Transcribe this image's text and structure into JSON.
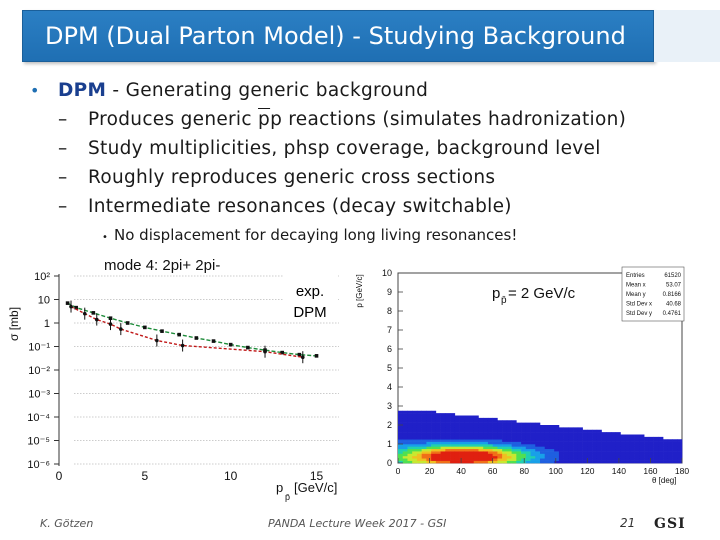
{
  "title": "DPM (Dual Parton Model) - Studying Background",
  "bullet": {
    "keyword": "DPM",
    "text": " - Generating generic background",
    "sub": [
      {
        "before": "Produces generic ",
        "over": "p",
        "mid": "p reactions (simulates hadronization)"
      },
      {
        "before": "Study multiplicities, phsp coverage, background level",
        "over": "",
        "mid": ""
      },
      {
        "before": "Roughly reproduces generic cross sections",
        "over": "",
        "mid": ""
      },
      {
        "before": "Intermediate resonances (decay switchable)",
        "over": "",
        "mid": ""
      }
    ],
    "note": "No displacement for decaying long living resonances!"
  },
  "left_plot": {
    "title": "mode 4: 2pi+ 2pi-",
    "ylabel": "σ [mb]",
    "xlabel": "p",
    "xlabel_sub": "p̄",
    "xlabel_unit": "[GeV/c]",
    "yticks": [
      "10²",
      "10",
      "1",
      "10⁻¹",
      "10⁻²",
      "10⁻³",
      "10⁻⁴",
      "10⁻⁵",
      "10⁻⁶"
    ],
    "xticks": [
      "0",
      "5",
      "10",
      "15"
    ],
    "legend_exp": "exp.",
    "legend_dpm": "DPM",
    "exp_color": "#c01818",
    "dpm_color": "#1e8c3a"
  },
  "right_plot": {
    "ylabel": "p [GeV/c]",
    "xlabel": "θ [deg]",
    "yticks": [
      "0",
      "1",
      "2",
      "3",
      "4",
      "5",
      "6",
      "7",
      "8",
      "9",
      "10"
    ],
    "xticks": [
      "0",
      "20",
      "40",
      "60",
      "80",
      "100",
      "120",
      "140",
      "160",
      "180"
    ],
    "label_main": "p",
    "label_sub": "p̄",
    "label_value": " = 2 GeV/c",
    "stats": [
      {
        "k": "Entries",
        "v": "61520"
      },
      {
        "k": "Mean x",
        "v": "53.07"
      },
      {
        "k": "Mean y",
        "v": "0.8166"
      },
      {
        "k": "Std Dev x",
        "v": "40.68"
      },
      {
        "k": "Std Dev y",
        "v": "0.4761"
      }
    ]
  },
  "chart_data": [
    {
      "type": "scatter",
      "title": "mode 4: 2pi+ 2pi-",
      "xlabel": "p [GeV/c]",
      "ylabel": "σ [mb]",
      "yscale": "log",
      "xlim": [
        0,
        16
      ],
      "ylim": [
        1e-06,
        100
      ],
      "series": [
        {
          "name": "exp.",
          "x": [
            0.7,
            1.5,
            2.2,
            3.0,
            3.6,
            5.7,
            7.2,
            12.0,
            14.2
          ],
          "y": [
            5,
            2.5,
            1.4,
            0.9,
            0.55,
            0.18,
            0.11,
            0.06,
            0.035
          ]
        },
        {
          "name": "DPM",
          "x": [
            0.5,
            1.0,
            2.0,
            3.0,
            4.0,
            5.0,
            6.0,
            7.0,
            8.0,
            9.0,
            10.0,
            11.0,
            12.0,
            13.0,
            14.0,
            15.0
          ],
          "y": [
            7,
            4.5,
            2.7,
            1.6,
            1.0,
            0.65,
            0.45,
            0.32,
            0.23,
            0.17,
            0.12,
            0.09,
            0.07,
            0.055,
            0.045,
            0.04
          ]
        }
      ]
    },
    {
      "type": "heatmap",
      "xlabel": "θ [deg]",
      "ylabel": "p [GeV/c]",
      "xlim": [
        0,
        180
      ],
      "ylim": [
        0,
        10
      ],
      "stats": {
        "Entries": 61520,
        "Mean x": 53.07,
        "Mean y": 0.8166,
        "Std Dev x": 40.68,
        "Std Dev y": 0.4761
      }
    }
  ],
  "footer": {
    "author": "K. Götzen",
    "event": "PANDA Lecture Week 2017 - GSI",
    "page": "21",
    "logo": "GSI"
  }
}
